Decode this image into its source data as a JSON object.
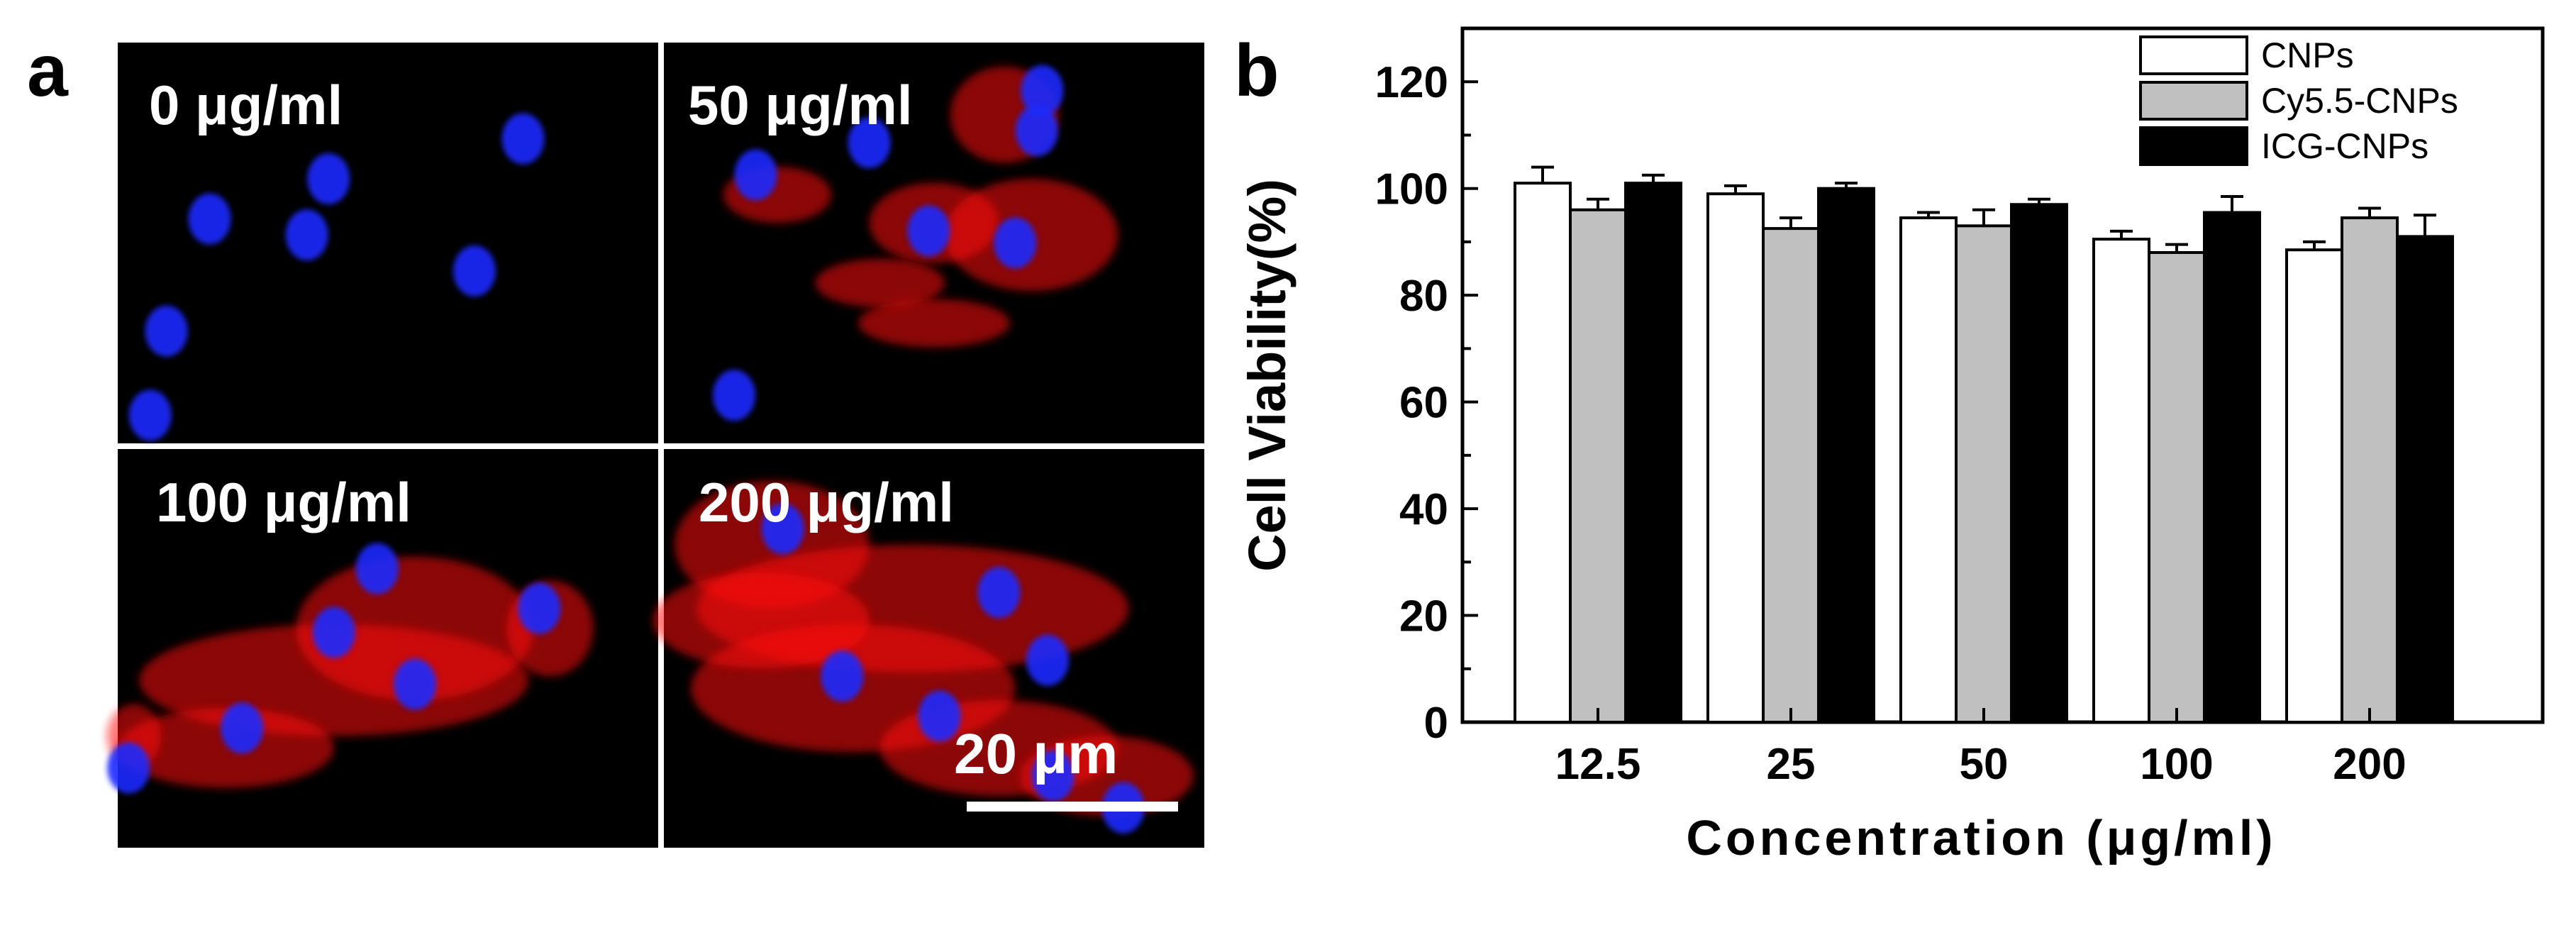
{
  "panel_a": {
    "letter": "a",
    "images": [
      {
        "label": "0 μg/ml",
        "level": 0
      },
      {
        "label": "50 μg/ml",
        "level": 1
      },
      {
        "label": "100 μg/ml",
        "level": 2
      },
      {
        "label": "200 μg/ml",
        "level": 3
      }
    ],
    "scale_bar_label": "20 μm",
    "colors": {
      "nucleus": "#1a2cff",
      "stain": "#ff1010",
      "background": "#000000"
    }
  },
  "panel_b": {
    "letter": "b"
  },
  "chart_data": {
    "type": "bar",
    "categories": [
      "12.5",
      "25",
      "50",
      "100",
      "200"
    ],
    "series": [
      {
        "name": "CNPs",
        "color": "#ffffff",
        "values": [
          101,
          99,
          94.5,
          90.5,
          88.5
        ],
        "errors": [
          3,
          1.5,
          1,
          1.5,
          1.5
        ]
      },
      {
        "name": "Cy5.5-CNPs",
        "color": "#c0c0c0",
        "values": [
          96,
          92.5,
          93,
          88,
          94.5
        ],
        "errors": [
          2,
          2,
          3,
          1.5,
          1.8
        ]
      },
      {
        "name": "ICG-CNPs",
        "color": "#000000",
        "values": [
          101,
          100,
          97,
          95.5,
          91
        ],
        "errors": [
          1.5,
          1,
          1,
          3,
          4
        ]
      }
    ],
    "xlabel": "Concentration (μg/ml)",
    "ylabel": "Cell Viability(%)",
    "ylim": [
      0,
      130
    ],
    "yticks": [
      0,
      20,
      40,
      60,
      80,
      100,
      120
    ],
    "legend_position": "top-right",
    "grid": false
  }
}
